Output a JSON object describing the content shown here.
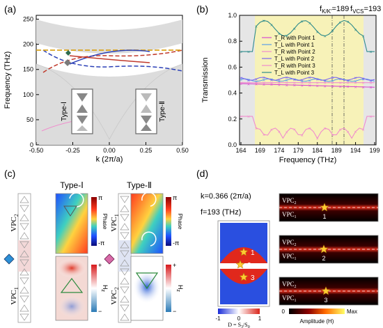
{
  "colors": {
    "band_grey": "#dcdcdc",
    "yellow_band": "#f7f2b8",
    "orange_dashed": "#d9a21b",
    "red_curve": "#c0392b",
    "blue_curve": "#2a3fb6",
    "magenta": "#d84bd0",
    "pink": "#f08ccd",
    "dark_green": "#2d6b4d",
    "light_blue": "#5aa0e6",
    "violet": "#7b68ee",
    "teal": "#2e8b8b"
  },
  "panel_a": {
    "label": "(a)",
    "ylabel": "Frequency (THz)",
    "xlabel": "k (2π/a)",
    "yticks": [
      "0",
      "50",
      "100",
      "150",
      "200",
      "250"
    ],
    "xticks": [
      "-0.50",
      "-0.25",
      "0.00",
      "0.25",
      "0.50"
    ],
    "type1_label": "Type-Ⅰ",
    "type2_label": "Type-Ⅱ"
  },
  "panel_b": {
    "label": "(b)",
    "ylabel": "Transmission",
    "xlabel": "Frequency (THz)",
    "yticks": [
      "0.0",
      "0.2",
      "0.4",
      "0.6",
      "0.8",
      "1.0"
    ],
    "xticks": [
      "164",
      "169",
      "174",
      "179",
      "184",
      "189",
      "194",
      "199"
    ],
    "f_kk_label": "f",
    "f_kk_sub": "K/K'",
    "f_kk_value": "=189",
    "f_vcs_label": "f",
    "f_vcs_sub": "VCS",
    "f_vcs_value": "=193",
    "legend": [
      "T_R with Point 1",
      "T_L with Point 1",
      "T_R with Point 2",
      "T_L with Point 2",
      "T_R with Point 3",
      "T_L with Point 3"
    ]
  },
  "panel_c": {
    "label": "(c)",
    "type1_title": "Type-Ⅰ",
    "type2_title": "Type-Ⅱ",
    "vpc_left_top": "VPC",
    "vpc_left_top_sub": "2",
    "vpc_left_bottom": "VPC",
    "vpc_left_bottom_sub": "1",
    "vpc_right_top": "VPC",
    "vpc_right_top_sub": "1",
    "vpc_right_bottom": "VPC",
    "vpc_right_bottom_sub": "2",
    "phase_label": "Phase",
    "phase_max": "π",
    "phase_min": "-π",
    "hz_label": "H",
    "hz_sub": "z",
    "hz_max": "+",
    "hz_min": "−"
  },
  "panel_d": {
    "label": "(d)",
    "k_text": "k=0.366 (2π/a)",
    "f_text": "f=193 (THz)",
    "points": [
      "1",
      "2",
      "3"
    ],
    "vpc_top": "VPC",
    "vpc_top_sub": "2",
    "vpc_bottom": "VPC",
    "vpc_bottom_sub": "1",
    "d_scale_min": "-1",
    "d_scale_mid": "0",
    "d_scale_max": "1",
    "d_label": "D = S",
    "d_label_sub1": "3",
    "d_label_mid": "/S",
    "d_label_sub2": "0",
    "amp_min": "0",
    "amp_max": "Max",
    "amp_label": "Amplitude (H)"
  }
}
